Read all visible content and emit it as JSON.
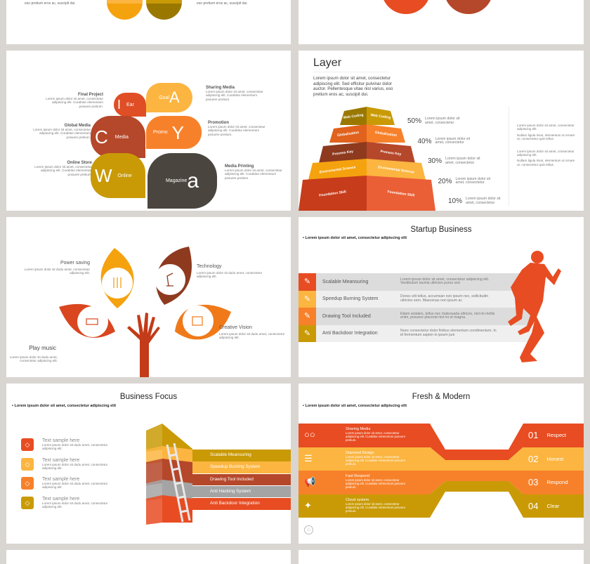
{
  "row0": {
    "left_text_a": "eso pretium eros ac, suscipit dui.",
    "left_text_b": "eso pretium eros ac, suscipit dui."
  },
  "bubbles": {
    "items": [
      {
        "letter": "I",
        "word": "Ear",
        "color": "#e04e25"
      },
      {
        "letter": "A",
        "word": "Goal",
        "color": "#fbb540"
      },
      {
        "letter": "C",
        "word": "Media",
        "color": "#b5472a"
      },
      {
        "letter": "Y",
        "word": "Promo",
        "color": "#f7812a"
      },
      {
        "letter": "W",
        "word": "Online",
        "color": "#c99a06"
      },
      {
        "letter": "a",
        "word": "Magazine",
        "color": "#4a463f"
      }
    ],
    "labels": [
      {
        "title": "Final Project",
        "body": "Lorem ipsum dolor sit amet, consectetur adipiscing elit. Curabitur elementum posuere pretium."
      },
      {
        "title": "Global Media",
        "body": "Lorem ipsum dolor sit amet, consectetur adipiscing elit. Curabitur elementum posuere pretium."
      },
      {
        "title": "Online Store",
        "body": "Lorem ipsum dolor sit amet, consectetur adipiscing elit. Curabitur elementum posuere pretium."
      },
      {
        "title": "Sharing Media",
        "body": "Lorem ipsum dolor sit amet, consectetur adipiscing elit. Curabitur elementum posuere pretium."
      },
      {
        "title": "Promotion",
        "body": "Lorem ipsum dolor sit amet, consectetur adipiscing elit. Curabitur elementum posuere pretium."
      },
      {
        "title": "Media Printing",
        "body": "Lorem ipsum dolor sit amet, consectetur adipiscing elit. Curabitur elementum posuere pretium."
      }
    ]
  },
  "layer": {
    "title": "Layer",
    "intro": "Lorem ipsum dolor sit amet, consectetur adipiscing elit. Sed efficitur pulvinar dolor auctor. Pellentesque vitae nisl varius, eso pretium eros ac, suscipit dui.",
    "levels": [
      {
        "label": "Web Coding",
        "pct": "50%",
        "text": "Lorem ipsum dolor sit amet, consectetur",
        "dark": "#9a7800",
        "light": "#c99a06"
      },
      {
        "label": "Globalization",
        "pct": "40%",
        "text": "Lorem ipsum dolor sit amet, consectetur",
        "dark": "#e0621d",
        "light": "#f7812a"
      },
      {
        "label": "Process Key",
        "pct": "30%",
        "text": "Lorem ipsum dolor sit amet, consectetur",
        "dark": "#8e3a1f",
        "light": "#b5472a"
      },
      {
        "label": "Enviromental Science",
        "pct": "20%",
        "text": "Lorem ipsum dolor sit amet, consectetur",
        "dark": "#f5a20f",
        "light": "#fbb540"
      },
      {
        "label": "Foundation Skill",
        "pct": "10%",
        "text": "Lorem ipsum dolor sit amet, consectetur",
        "dark": "#c73c1a",
        "light": "#ea5f35"
      }
    ],
    "bullets": [
      "Lorem ipsum dolor sit amet, consectetur adipiscing elit.",
      "Nullam ligula risus, elementum ut ornare ut, consectetur quis tellus.",
      "Lorem ipsum dolor sit amet, consectetur adipiscing elit.",
      "Nullam ligula risus, elementum ut ornare ut, consectetur quis tellus."
    ]
  },
  "tree": {
    "items": [
      {
        "title": "Power saving",
        "body": "Lorem ipsum dolor sit dudu amet, consectetur adipiscing elit.",
        "icon": "equalizer-icon",
        "color": "#f5a20f"
      },
      {
        "title": "Technology",
        "body": "Lorem ipsum dolor sit dudu amet, consectetur adipiscing elit.",
        "icon": "lamp-icon",
        "color": "#8e3a1f"
      },
      {
        "title": "Play music",
        "body": "Lorem ipsum dolor sit dudu amet, consectetur adipiscing elit.",
        "icon": "battery-icon",
        "color": "#d9461f"
      },
      {
        "title": "Creative Vision",
        "body": "Lorem ipsum dolor sit dudu amet, consectetur adipiscing elit.",
        "icon": "store-icon",
        "color": "#f07a1a"
      }
    ]
  },
  "startup": {
    "title": "Startup Business",
    "bullet": "Lorem ipsum dolor sit amet, consectetur adipiscing elit",
    "rows": [
      {
        "label": "Scalable Meansuring",
        "text": "Lorem ipsum dolor sit amet, consectetur adipiscing elit. Vestibulum lacinia ultricies purus sed",
        "color": "#e84c22",
        "icon": "pen-icon"
      },
      {
        "label": "Speedup Burning System",
        "text": "Donec elit tellus, accumsan non ipsum nec, sollicitudin ultricies sem. Maecenas non ipsum ac",
        "color": "#fbb540",
        "icon": "flame-icon"
      },
      {
        "label": "Drawing Tool Included",
        "text": "Etiam sodales, tellus nec malesuada ultrices, nisl mi mollis enim, posuere placerat nisl mi ut magna.",
        "color": "#f7812a",
        "icon": "compass-icon"
      },
      {
        "label": "Anti Backdoor Integration",
        "text": "Nunc consectetur dolor finibus elementum condimentum. In id fermentum sapien in ipsum juoi",
        "color": "#c99a06",
        "icon": "bracket-icon"
      }
    ]
  },
  "focus": {
    "title": "Business Focus",
    "bullet": "Lorem ipsum dolor sit amet, consectetur adipiscing elit",
    "items": [
      {
        "title": "Text sample here",
        "body": "Lorem ipsum dolor sit dudu amet, consectetur adipiscing elit.",
        "color": "#e84c22",
        "icon": "scale-icon"
      },
      {
        "title": "Text sample here",
        "body": "Lorem ipsum dolor sit dudu amet, consectetur adipiscing elit.",
        "color": "#fbb540",
        "icon": "compass-icon"
      },
      {
        "title": "Text sample here",
        "body": "Lorem ipsum dolor sit dudu amet, consectetur adipiscing elit.",
        "color": "#f7812a",
        "icon": "flame-icon"
      },
      {
        "title": "Text sample here",
        "body": "Lorem ipsum dolor sit dudu amet, consectetur adipiscing elit.",
        "color": "#c99a06",
        "icon": "flame-icon"
      }
    ],
    "bands": [
      {
        "label": "Scalable Meansuring",
        "color": "#c99a06"
      },
      {
        "label": "Speedup Burning System",
        "color": "#fbb540"
      },
      {
        "label": "Drawing Tool Included",
        "color": "#b5472a"
      },
      {
        "label": "Anti Hacking System",
        "color": "#a4a4a4"
      },
      {
        "label": "Anti Backdoor Integration",
        "color": "#e84c22"
      }
    ]
  },
  "fresh": {
    "title": "Fresh & Modern",
    "bullet": "Lorem ipsum dolor sit amet, consectetur adipiscing elit",
    "rows": [
      {
        "title": "Sharing Media",
        "body": "Lorem ipsum dolor sit amet, consectetur adipiscing elit. Curabitur elementum posuere pretium.",
        "num": "01",
        "word": "Respect",
        "color": "#e84c22",
        "icon": "glasses-icon"
      },
      {
        "title": "Diamond Design",
        "body": "Lorem ipsum dolor sit amet, consectetur adipiscing elit. Curabitur elementum posuere pretium.",
        "num": "02",
        "word": "Honest",
        "color": "#fbb540",
        "icon": "database-icon"
      },
      {
        "title": "Fast Respond",
        "body": "Lorem ipsum dolor sit amet, consectetur adipiscing elit. Curabitur elementum posuere pretium.",
        "num": "03",
        "word": "Respond",
        "color": "#f7812a",
        "icon": "megaphone-icon"
      },
      {
        "title": "Cloud system",
        "body": "Lorem ipsum dolor sit amet, consectetur adipiscing elit. Curabitur elementum posuere pretium.",
        "num": "04",
        "word": "Clear",
        "color": "#c99a06",
        "icon": "satellite-icon"
      }
    ]
  }
}
